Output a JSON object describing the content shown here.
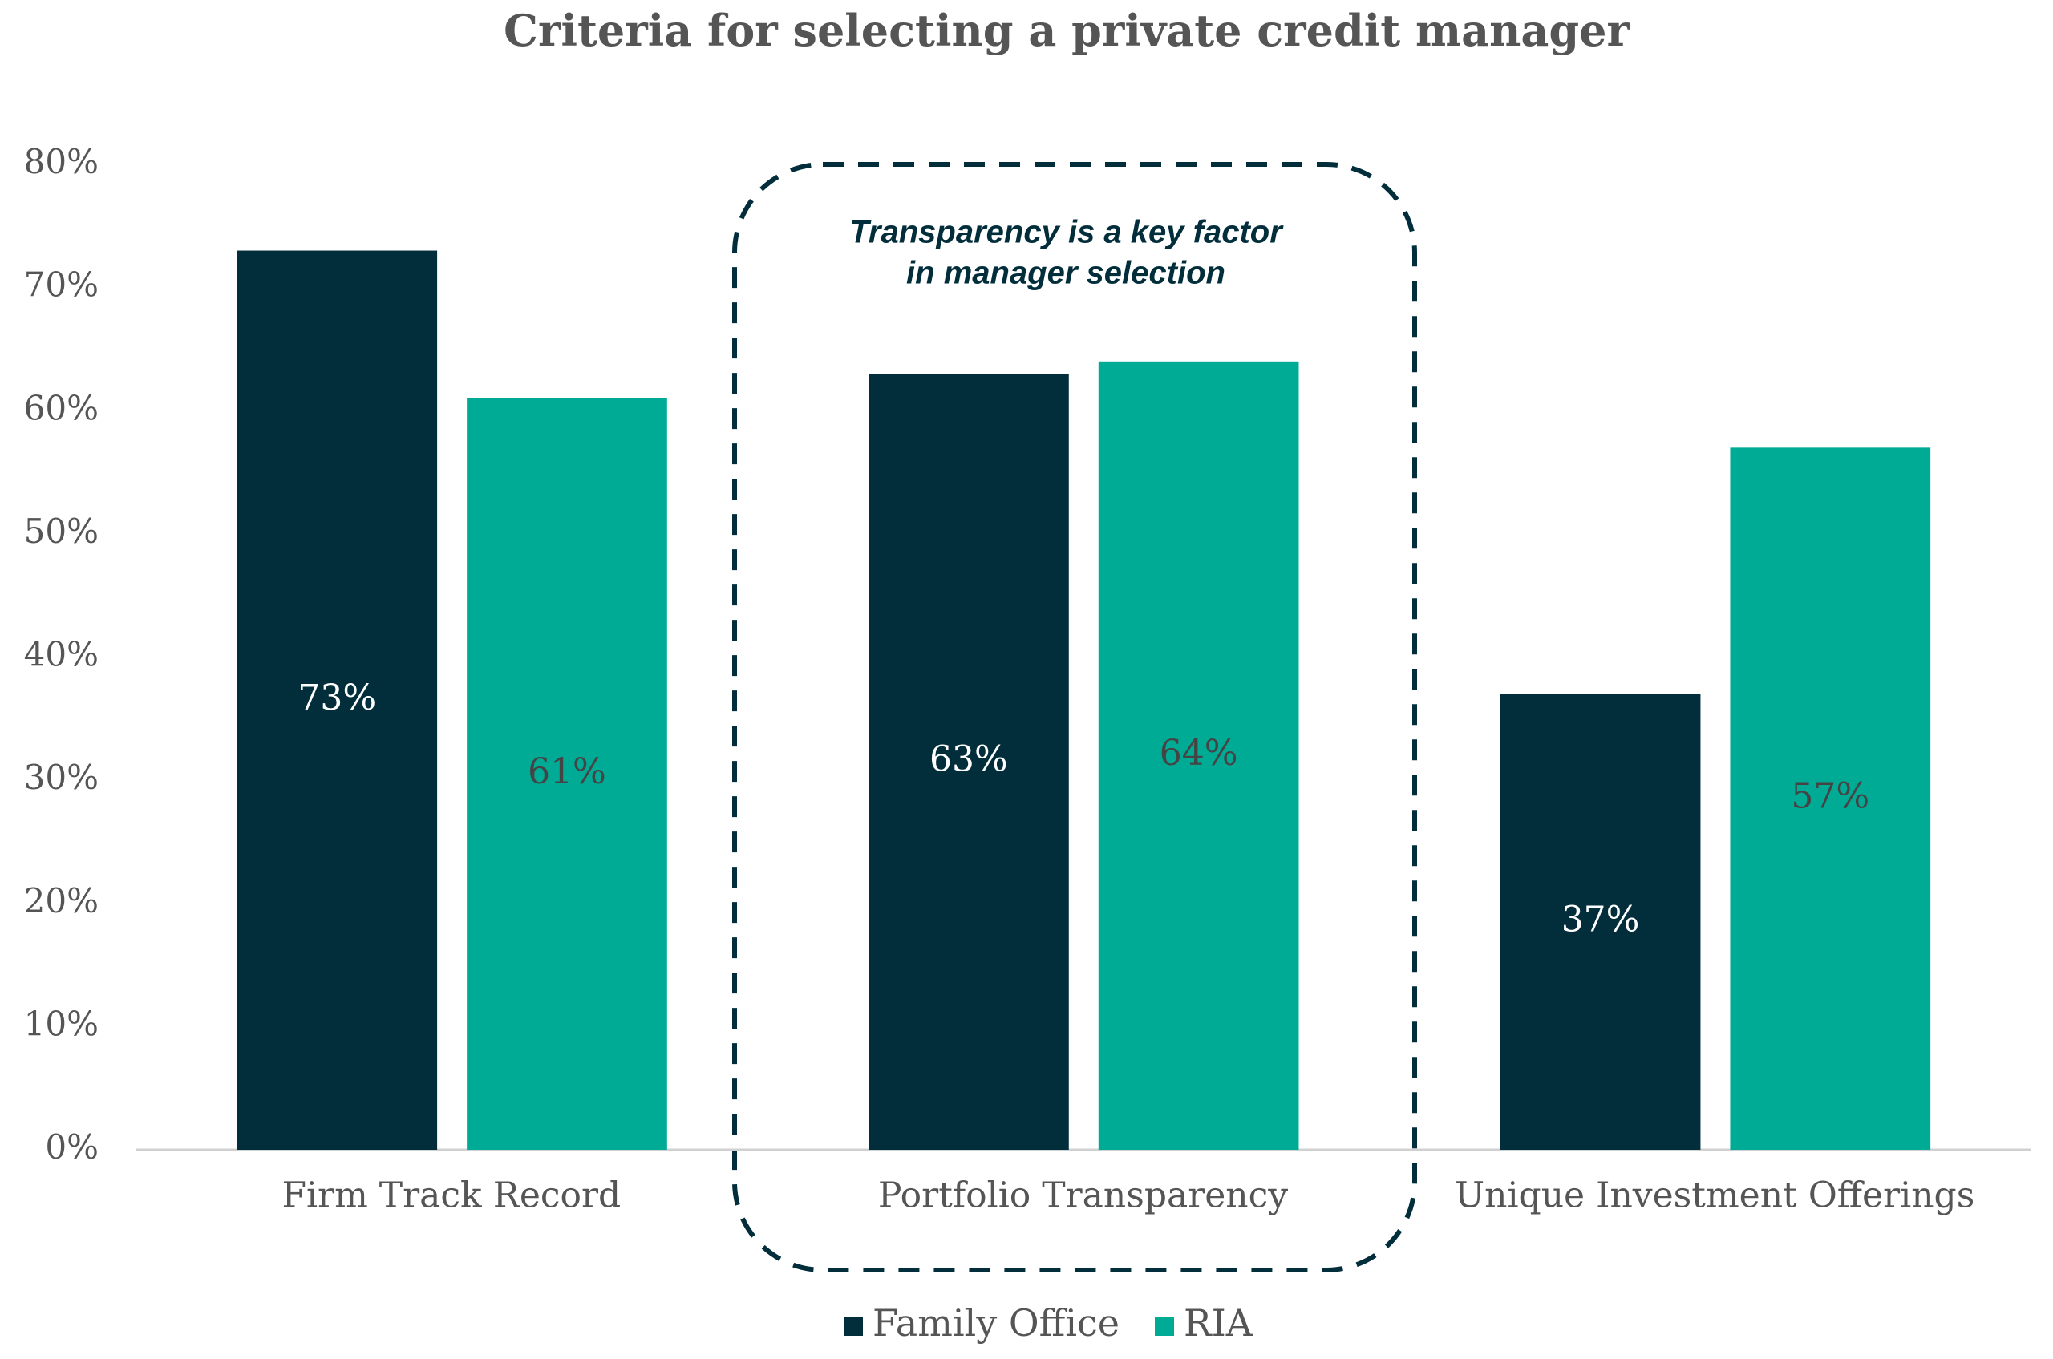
{
  "chart_data": {
    "type": "bar",
    "title": "Criteria for selecting a private credit manager",
    "categories": [
      "Firm Track Record",
      "Portfolio Transparency",
      "Unique Investment Offerings"
    ],
    "series": [
      {
        "name": "Family Office",
        "color": "#022e3b",
        "values": [
          73,
          63,
          37
        ],
        "value_labels": [
          "73%",
          "63%",
          "37%"
        ]
      },
      {
        "name": "RIA",
        "color": "#00ab96",
        "values": [
          61,
          64,
          57
        ],
        "value_labels": [
          "61%",
          "64%",
          "57%"
        ]
      }
    ],
    "ylim": [
      0,
      80
    ],
    "yticks": [
      {
        "value": 0,
        "label": "0%"
      },
      {
        "value": 10,
        "label": "10%"
      },
      {
        "value": 20,
        "label": "20%"
      },
      {
        "value": 30,
        "label": "30%"
      },
      {
        "value": 40,
        "label": "40%"
      },
      {
        "value": 50,
        "label": "50%"
      },
      {
        "value": 60,
        "label": "60%"
      },
      {
        "value": 70,
        "label": "70%"
      },
      {
        "value": 80,
        "label": "80%"
      }
    ],
    "annotation": [
      "Transparency is a key factor",
      "in manager selection"
    ],
    "grid": false,
    "legend": "bottom"
  }
}
